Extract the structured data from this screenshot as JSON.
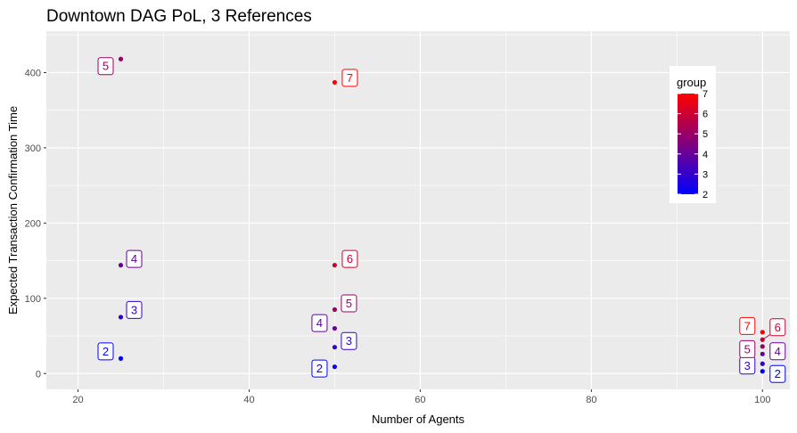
{
  "chart_data": {
    "type": "scatter",
    "title": "Downtown DAG PoL, 3 References",
    "xlabel": "Number of Agents",
    "ylabel": "Expected Transaction Confirmation Time",
    "xlim": [
      16.3,
      103.2
    ],
    "ylim": [
      -21,
      455
    ],
    "x_ticks": [
      20,
      40,
      60,
      80,
      100
    ],
    "y_ticks": [
      0,
      100,
      200,
      300,
      400
    ],
    "grid": true,
    "points": [
      {
        "x": 25,
        "y": 20,
        "group": 2,
        "label": "2"
      },
      {
        "x": 25,
        "y": 75,
        "group": 3,
        "label": "3"
      },
      {
        "x": 25,
        "y": 144,
        "group": 4,
        "label": "4"
      },
      {
        "x": 25,
        "y": 418,
        "group": 5,
        "label": "5"
      },
      {
        "x": 50,
        "y": 9,
        "group": 2,
        "label": "2"
      },
      {
        "x": 50,
        "y": 35,
        "group": 3,
        "label": "3"
      },
      {
        "x": 50,
        "y": 60,
        "group": 4,
        "label": "4"
      },
      {
        "x": 50,
        "y": 85,
        "group": 5,
        "label": "5"
      },
      {
        "x": 50,
        "y": 144,
        "group": 6,
        "label": "6"
      },
      {
        "x": 50,
        "y": 387,
        "group": 7,
        "label": "7"
      },
      {
        "x": 100,
        "y": 3,
        "group": 2,
        "label": "2"
      },
      {
        "x": 100,
        "y": 13,
        "group": 3,
        "label": "3"
      },
      {
        "x": 100,
        "y": 26,
        "group": 4,
        "label": "4"
      },
      {
        "x": 100,
        "y": 36,
        "group": 5,
        "label": "5"
      },
      {
        "x": 100,
        "y": 45,
        "group": 6,
        "label": "6"
      },
      {
        "x": 100,
        "y": 55,
        "group": 7,
        "label": "7"
      }
    ],
    "legend": {
      "title": "group",
      "placement": "right-inside",
      "range": [
        2,
        7
      ],
      "ticks": [
        2,
        3,
        4,
        5,
        6,
        7
      ],
      "low_color": "#0000ff",
      "high_color": "#ff0000"
    },
    "panel_background": "#ebebeb",
    "grid_color": "#ffffff"
  }
}
